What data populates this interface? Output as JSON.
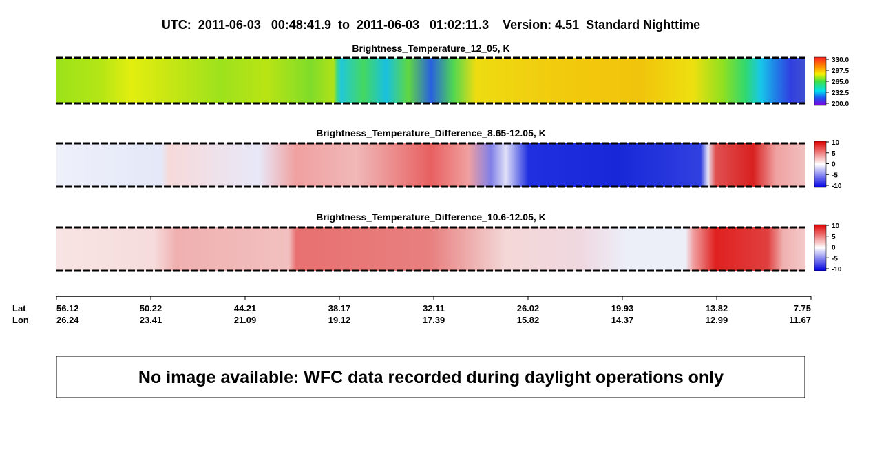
{
  "header": {
    "title": "UTC:  2011-06-03   00:48:41.9  to  2011-06-03   01:02:11.3    Version: 4.51  Standard Nighttime"
  },
  "panels": [
    {
      "title": "Brightness_Temperature_12_05, K",
      "colorbar_ticks": [
        "330.0",
        "297.5",
        "265.0",
        "232.5",
        "200.0"
      ]
    },
    {
      "title": "Brightness_Temperature_Difference_8.65-12.05, K",
      "colorbar_ticks": [
        "10",
        "5",
        "0",
        "-5",
        "-10"
      ]
    },
    {
      "title": "Brightness_Temperature_Difference_10.6-12.05, K",
      "colorbar_ticks": [
        "10",
        "5",
        "0",
        "-5",
        "-10"
      ]
    }
  ],
  "axis": {
    "lat_label": "Lat",
    "lon_label": "Lon",
    "lat": [
      "56.12",
      "50.22",
      "44.21",
      "38.17",
      "32.11",
      "26.02",
      "19.93",
      "13.82",
      "7.75"
    ],
    "lon": [
      "26.24",
      "23.41",
      "21.09",
      "19.12",
      "17.39",
      "15.82",
      "14.37",
      "12.99",
      "11.67"
    ]
  },
  "notice": "No image available: WFC data recorded during daylight operations only"
}
